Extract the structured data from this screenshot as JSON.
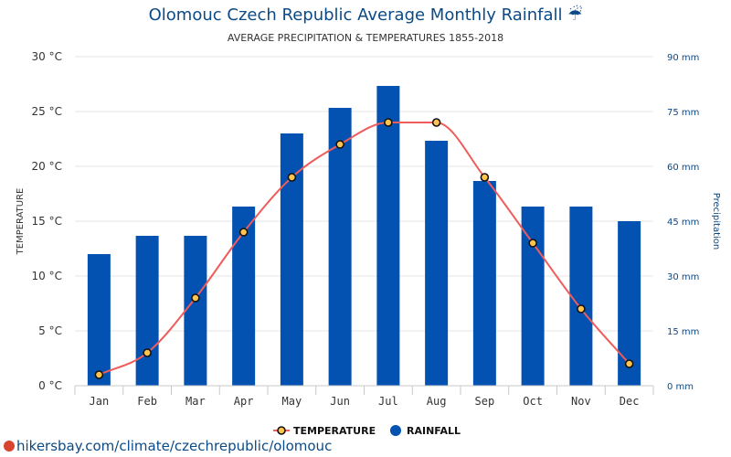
{
  "header": {
    "title": "Olomouc Czech Republic Average Monthly Rainfall ☔",
    "subtitle": "AVERAGE PRECIPITATION & TEMPERATURES 1855-2018"
  },
  "footer": {
    "source": "hikersbay.com/climate/czechrepublic/olomouc",
    "source_icon": "map-pin-icon"
  },
  "colors": {
    "rain": "#0352b2",
    "temp_line": "#f05b5b",
    "temp_marker_fill": "#ffc44d",
    "temp_marker_stroke": "#111111",
    "right_axis_text": "#0b4a86"
  },
  "chart_data": {
    "type": "bar",
    "categories": [
      "Jan",
      "Feb",
      "Mar",
      "Apr",
      "May",
      "Jun",
      "Jul",
      "Aug",
      "Sep",
      "Oct",
      "Nov",
      "Dec"
    ],
    "series": [
      {
        "name": "TEMPERATURE",
        "type": "line",
        "axis": "left",
        "values": [
          1,
          3,
          8,
          14,
          19,
          22,
          24,
          24,
          19,
          13,
          7,
          2
        ]
      },
      {
        "name": "RAINFALL",
        "type": "bar",
        "axis": "right",
        "values": [
          36,
          41,
          41,
          49,
          69,
          76,
          82,
          67,
          56,
          49,
          49,
          45
        ]
      }
    ],
    "ylabel_left": "TEMPERATURE",
    "ylabel_right": "Precipitation",
    "ylim_left": [
      0,
      30
    ],
    "ylim_right": [
      0,
      90
    ],
    "yticks_left": [
      "0 °C",
      "5 °C",
      "10 °C",
      "15 °C",
      "20 °C",
      "25 °C",
      "30 °C"
    ],
    "yticks_right": [
      "0 mm",
      "15 mm",
      "30 mm",
      "45 mm",
      "60 mm",
      "75 mm",
      "90 mm"
    ],
    "grid": true,
    "legend": "bottom-center"
  }
}
